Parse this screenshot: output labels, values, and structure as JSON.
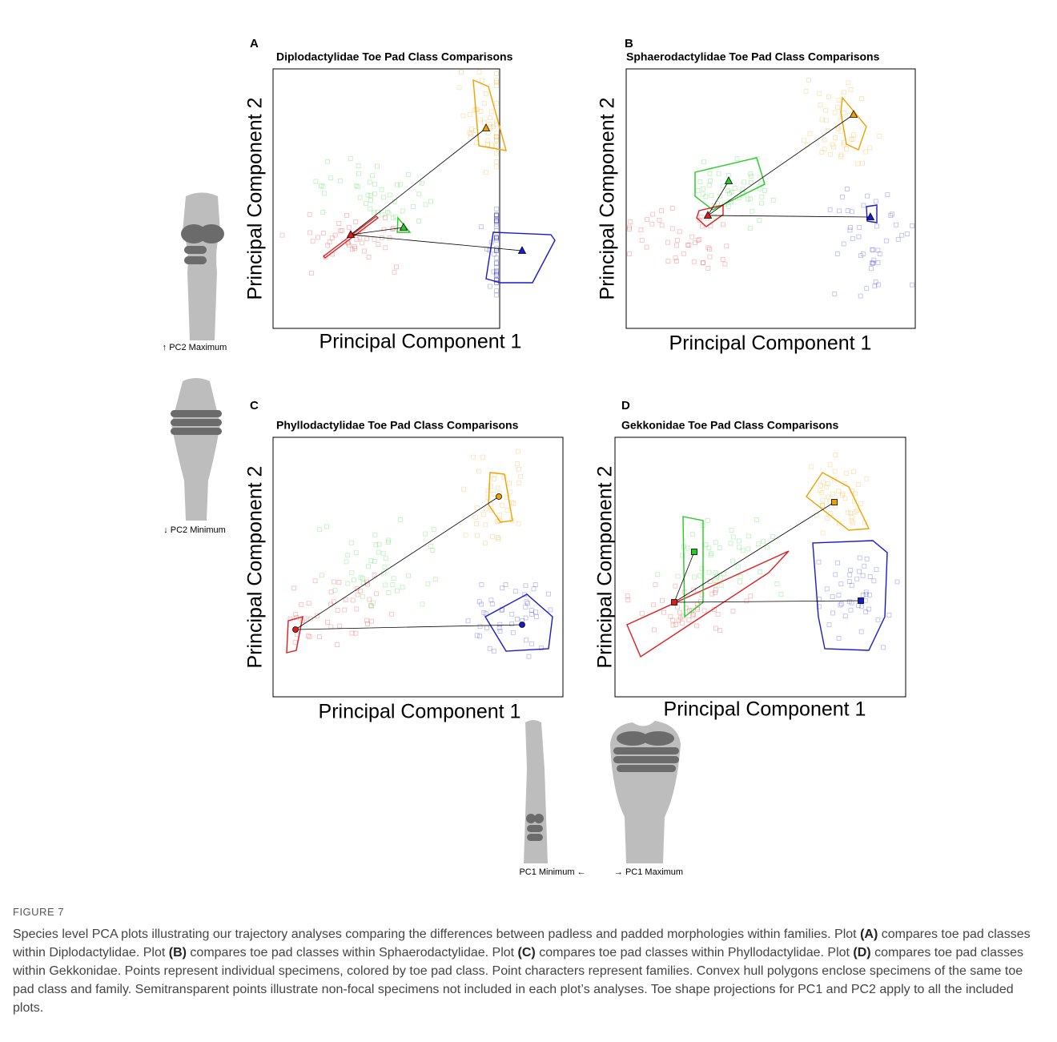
{
  "panels": [
    {
      "label": "A",
      "title": "Diplodactylidae Toe Pad Class Comparisons",
      "x_label": "Principal Component 1",
      "y_label": "Principal Component 2"
    },
    {
      "label": "B",
      "title": "Sphaerodactylidae Toe Pad Class Comparisons",
      "x_label": "Principal Component 1",
      "y_label": "Principal Component 2"
    },
    {
      "label": "C",
      "title": "Phyllodactylidae Toe Pad Class Comparisons",
      "x_label": "Principal Component 1",
      "y_label": "Principal Component 2"
    },
    {
      "label": "D",
      "title": "Gekkonidae Toe Pad Class Comparisons",
      "x_label": "Principal Component 1",
      "y_label": "Principal Component 2"
    }
  ],
  "toe_captions": {
    "pc2_max": "↑ PC2 Maximum",
    "pc2_min": "↓ PC2 Minimum",
    "pc1_min": "PC1 Minimum ←",
    "pc1_max": "→ PC1 Maximum"
  },
  "figure_label": "FIGURE 7",
  "caption": [
    "Species level PCA plots illustrating our trajectory analyses comparing the differences between padless and padded morphologies within families. Plot ",
    "(A)",
    " compares toe pad classes within Diplodactylidae. Plot ",
    "(B)",
    " compares toe pad classes within Sphaerodactylidae. Plot ",
    "(C)",
    " compares toe pad classes within Phyllodactylidae. Plot ",
    "(D)",
    " compares toe pad classes within Gekkonidae. Points represent individual specimens, colored by toe pad class. Point characters represent families. Convex hull polygons enclose specimens of the same toe pad class and family. Semitransparent points illustrate non-focal specimens not included in each plot’s analyses. Toe shape projections for PC1 and PC2 apply to all the included plots."
  ]
}
